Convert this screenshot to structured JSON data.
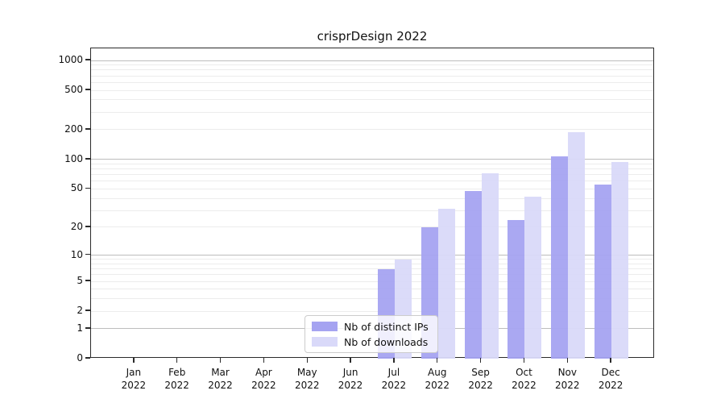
{
  "title": "crisprDesign 2022",
  "chart_data": {
    "type": "bar",
    "title": "crisprDesign 2022",
    "categories": [
      "Jan",
      "Feb",
      "Mar",
      "Apr",
      "May",
      "Jun",
      "Jul",
      "Aug",
      "Sep",
      "Oct",
      "Nov",
      "Dec"
    ],
    "year": "2022",
    "series": [
      {
        "name": "Nb of distinct IPs",
        "color": "#a5a3f1",
        "values": [
          0,
          0,
          0,
          0,
          0,
          0,
          7,
          20,
          48,
          24,
          107,
          55
        ]
      },
      {
        "name": "Nb of downloads",
        "color": "#d9d9f9",
        "values": [
          0,
          0,
          0,
          0,
          0,
          0,
          9,
          31,
          72,
          42,
          190,
          94
        ]
      }
    ],
    "y_ticks": [
      0,
      1,
      2,
      5,
      10,
      20,
      50,
      100,
      200,
      500,
      1000
    ],
    "y_scale": "log10(1+v)",
    "ylim_top_value": 1000,
    "grid": "on",
    "legend_position": "lower-center-left-inside",
    "colors": {
      "major_grid": "#bdbdbd",
      "minor_grid": "#ececec",
      "axis_spine": "#2b2b2b",
      "text": "#111111",
      "background": "#ffffff"
    }
  }
}
